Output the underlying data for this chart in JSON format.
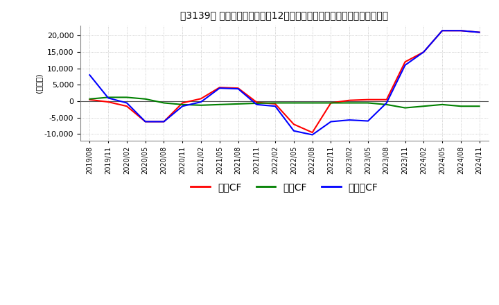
{
  "title": "　3139、 キャッシュフローの12か月移動合計の対前年同期増減額の推移",
  "ylabel": "(百万円)",
  "ylim": [
    -12000,
    23000
  ],
  "yticks": [
    -10000,
    -5000,
    0,
    5000,
    10000,
    15000,
    20000
  ],
  "legend_labels": [
    "営業CF",
    "投資CF",
    "フリーCF"
  ],
  "legend_colors": [
    "#ff0000",
    "#008000",
    "#0000ff"
  ],
  "x_labels": [
    "2019/08",
    "2019/11",
    "2020/02",
    "2020/05",
    "2020/08",
    "2020/11",
    "2021/02",
    "2021/05",
    "2021/08",
    "2021/11",
    "2022/02",
    "2022/05",
    "2022/08",
    "2022/11",
    "2023/02",
    "2023/05",
    "2023/08",
    "2023/11",
    "2024/02",
    "2024/05",
    "2024/08",
    "2024/11"
  ],
  "operating_cf": [
    500,
    -200,
    -1500,
    -6200,
    -6200,
    -500,
    800,
    4200,
    4000,
    -300,
    -800,
    -7000,
    -9500,
    -500,
    300,
    500,
    500,
    12000,
    15000,
    21500,
    21500,
    21000
  ],
  "investing_cf": [
    700,
    1200,
    1200,
    700,
    -500,
    -1000,
    -1200,
    -1000,
    -800,
    -600,
    -500,
    -500,
    -500,
    -500,
    -500,
    -500,
    -1000,
    -2000,
    -1500,
    -1000,
    -1500,
    -1500
  ],
  "free_cf": [
    8000,
    1000,
    -500,
    -6200,
    -6200,
    -1500,
    -200,
    4000,
    3800,
    -1000,
    -1500,
    -9000,
    -10200,
    -6200,
    -5700,
    -6000,
    -500,
    11000,
    15000,
    21500,
    21500,
    21000
  ],
  "background_color": "#ffffff",
  "plot_bg_color": "#ffffff",
  "grid_color": "#aaaaaa",
  "line_width": 1.5
}
